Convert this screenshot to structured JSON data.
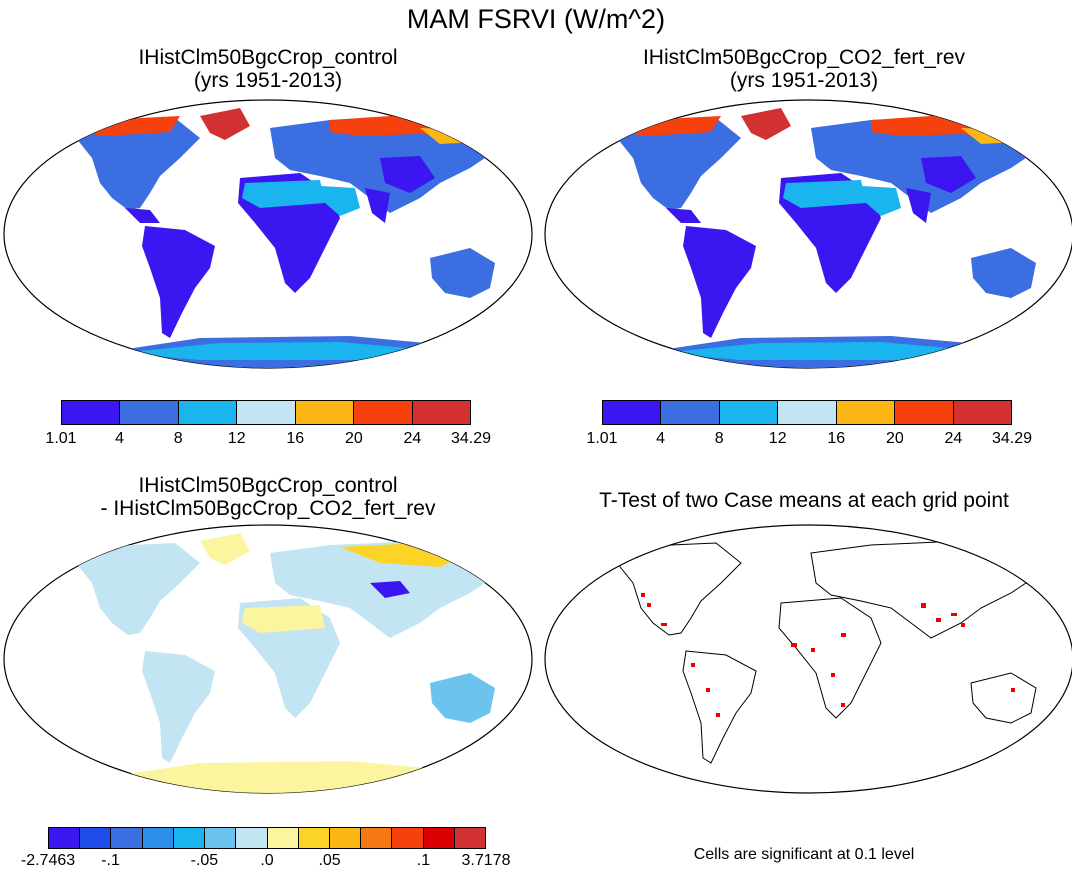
{
  "title": "MAM FSRVI (W/m^2)",
  "panels": {
    "top_left": {
      "title_line1": "IHistClm50BgcCrop_control",
      "title_line2": "(yrs 1951-2013)"
    },
    "top_right": {
      "title_line1": "IHistClm50BgcCrop_CO2_fert_rev",
      "title_line2": "(yrs 1951-2013)"
    },
    "bottom_left": {
      "title_line1": "IHistClm50BgcCrop_control",
      "title_line2": "- IHistClm50BgcCrop_CO2_fert_rev"
    },
    "bottom_right": {
      "title_line1": "T-Test of two Case means at each grid point"
    }
  },
  "colorbar_abs": {
    "colors": [
      "#3b16f0",
      "#3b6ee0",
      "#1ab4ef",
      "#c3e4f3",
      "#fcb716",
      "#f5410e",
      "#d13131"
    ],
    "labels": [
      "1.01",
      "4",
      "8",
      "12",
      "16",
      "20",
      "24",
      "34.29"
    ]
  },
  "colorbar_diff": {
    "colors": [
      "#3b16f0",
      "#1f4be8",
      "#3b6ee0",
      "#2c8ee8",
      "#1ab4ef",
      "#6cc3ee",
      "#c3e4f3",
      "#fcf5a0",
      "#fcd428",
      "#fcb716",
      "#f57a14",
      "#f5410e",
      "#d80000",
      "#d13131"
    ],
    "labels": [
      "-2.7463",
      "-.1",
      "-.05",
      ".0",
      ".05",
      ".1",
      "3.7178"
    ]
  },
  "note": "Cells are significant at 0.1 level"
}
